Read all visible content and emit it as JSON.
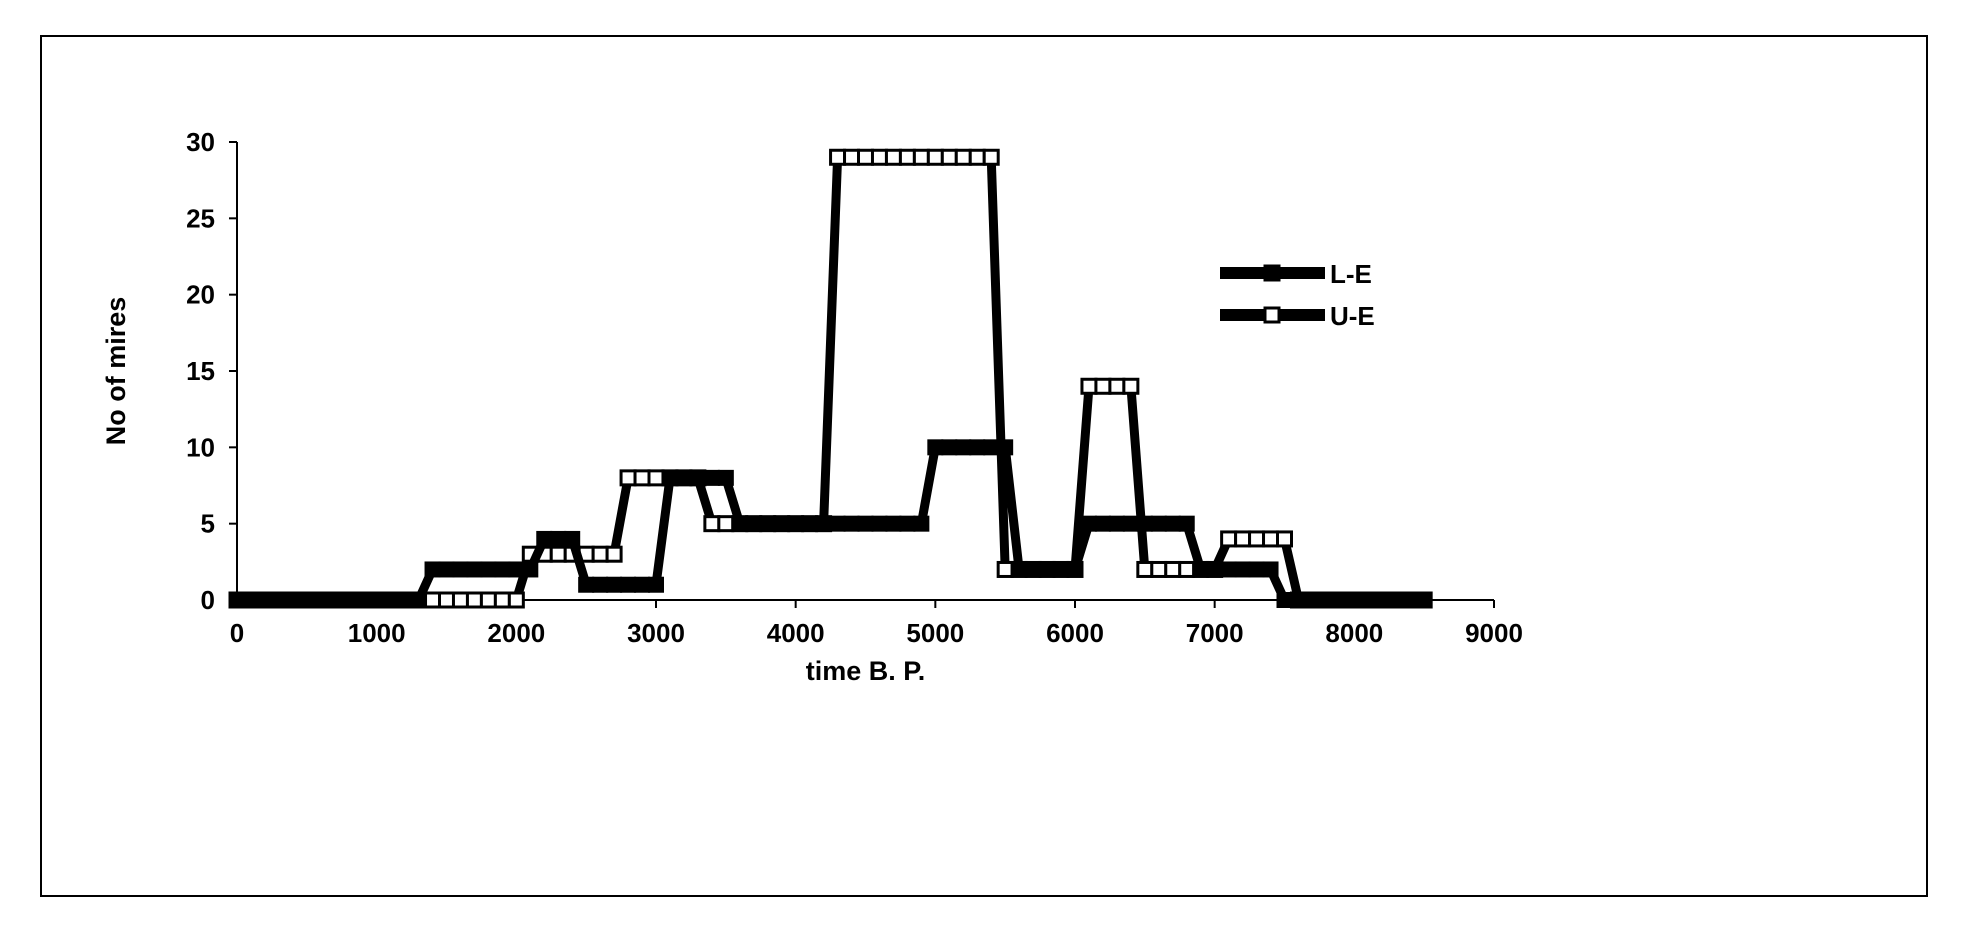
{
  "chart_data": {
    "type": "line",
    "title": "",
    "xlabel": "time B. P.",
    "ylabel": "No of mires",
    "xlim": [
      0,
      9000
    ],
    "ylim": [
      0,
      30
    ],
    "xticks": [
      0,
      1000,
      2000,
      3000,
      4000,
      5000,
      6000,
      7000,
      8000,
      9000
    ],
    "yticks": [
      0,
      5,
      10,
      15,
      20,
      25,
      30
    ],
    "grid": false,
    "legend_position": "right",
    "line_color": "#000000",
    "series": [
      {
        "name": "L-E",
        "marker": "filled-square",
        "x": [
          0,
          100,
          200,
          300,
          400,
          500,
          600,
          700,
          800,
          900,
          1000,
          1100,
          1200,
          1300,
          1400,
          1500,
          1600,
          1700,
          1800,
          1900,
          2000,
          2100,
          2200,
          2300,
          2400,
          2500,
          2600,
          2700,
          2800,
          2900,
          3000,
          3100,
          3200,
          3300,
          3400,
          3500,
          3600,
          3700,
          3800,
          3900,
          4000,
          4100,
          4200,
          4300,
          4400,
          4500,
          4600,
          4700,
          4800,
          4900,
          5000,
          5100,
          5200,
          5300,
          5400,
          5500,
          5600,
          5700,
          5800,
          5900,
          6000,
          6100,
          6200,
          6300,
          6400,
          6500,
          6600,
          6700,
          6800,
          6900,
          7000,
          7100,
          7200,
          7300,
          7400,
          7500,
          7600,
          7700,
          7800,
          7900,
          8000,
          8100,
          8200,
          8300,
          8400,
          8500
        ],
        "y": [
          0,
          0,
          0,
          0,
          0,
          0,
          0,
          0,
          0,
          0,
          0,
          0,
          0,
          0,
          2,
          2,
          2,
          2,
          2,
          2,
          2,
          2,
          4,
          4,
          4,
          1,
          1,
          1,
          1,
          1,
          1,
          8,
          8,
          8,
          8,
          8,
          5,
          5,
          5,
          5,
          5,
          5,
          5,
          5,
          5,
          5,
          5,
          5,
          5,
          5,
          10,
          10,
          10,
          10,
          10,
          10,
          2,
          2,
          2,
          2,
          2,
          5,
          5,
          5,
          5,
          5,
          5,
          5,
          5,
          2,
          2,
          2,
          2,
          2,
          2,
          0,
          0,
          0,
          0,
          0,
          0,
          0,
          0,
          0,
          0,
          0
        ]
      },
      {
        "name": "U-E",
        "marker": "open-square",
        "x": [
          0,
          100,
          200,
          300,
          400,
          500,
          600,
          700,
          800,
          900,
          1000,
          1100,
          1200,
          1300,
          1400,
          1500,
          1600,
          1700,
          1800,
          1900,
          2000,
          2100,
          2200,
          2300,
          2400,
          2500,
          2600,
          2700,
          2800,
          2900,
          3000,
          3100,
          3200,
          3300,
          3400,
          3500,
          3600,
          3700,
          3800,
          3900,
          4000,
          4100,
          4200,
          4300,
          4400,
          4500,
          4600,
          4700,
          4800,
          4900,
          5000,
          5100,
          5200,
          5300,
          5400,
          5500,
          5600,
          5700,
          5800,
          5900,
          6000,
          6100,
          6200,
          6300,
          6400,
          6500,
          6600,
          6700,
          6800,
          6900,
          7000,
          7100,
          7200,
          7300,
          7400,
          7500,
          7600,
          7700,
          7800,
          7900,
          8000,
          8100,
          8200,
          8300,
          8400,
          8500
        ],
        "y": [
          0,
          0,
          0,
          0,
          0,
          0,
          0,
          0,
          0,
          0,
          0,
          0,
          0,
          0,
          0,
          0,
          0,
          0,
          0,
          0,
          0,
          3,
          3,
          3,
          3,
          3,
          3,
          3,
          8,
          8,
          8,
          8,
          8,
          8,
          5,
          5,
          5,
          5,
          5,
          5,
          5,
          5,
          5,
          29,
          29,
          29,
          29,
          29,
          29,
          29,
          29,
          29,
          29,
          29,
          29,
          2,
          2,
          2,
          2,
          2,
          2,
          14,
          14,
          14,
          14,
          2,
          2,
          2,
          2,
          2,
          2,
          4,
          4,
          4,
          4,
          4,
          0,
          0,
          0,
          0,
          0,
          0,
          0,
          0,
          0,
          0
        ]
      }
    ]
  }
}
